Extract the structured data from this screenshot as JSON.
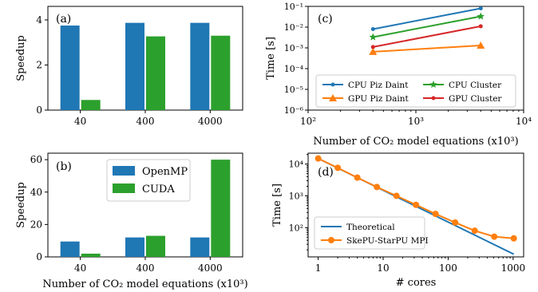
{
  "colors": {
    "openmp": "#1f77b4",
    "cuda": "#2ca02c",
    "cpu_daint": "#1f77b4",
    "gpu_daint": "#ff7f0e",
    "cpu_cluster": "#2ca02c",
    "gpu_cluster": "#d62728",
    "theoretical": "#1f77b4",
    "skepu": "#ff7f0e"
  },
  "chart_data": [
    {
      "panel": "(a)",
      "type": "bar",
      "categories": [
        "40",
        "400",
        "4000"
      ],
      "series": [
        {
          "name": "OpenMP",
          "values": [
            3.75,
            3.87,
            3.87
          ]
        },
        {
          "name": "CUDA",
          "values": [
            0.45,
            3.27,
            3.3
          ]
        }
      ],
      "ylabel": "Speedup",
      "xlabel": "",
      "ylim": [
        0,
        4.6
      ],
      "yticks": [
        "0",
        "2",
        "4"
      ]
    },
    {
      "panel": "(b)",
      "type": "bar",
      "categories": [
        "40",
        "400",
        "4000"
      ],
      "series": [
        {
          "name": "OpenMP",
          "values": [
            9.5,
            12,
            12
          ]
        },
        {
          "name": "CUDA",
          "values": [
            2,
            13,
            60
          ]
        }
      ],
      "ylabel": "Speedup",
      "xlabel": "Number of CO₂ model equations (x10³)",
      "ylim": [
        0,
        64
      ],
      "yticks": [
        "0",
        "20",
        "40",
        "60"
      ],
      "legend": {
        "placement": "top-center",
        "entries": [
          "OpenMP",
          "CUDA"
        ]
      }
    },
    {
      "panel": "(c)",
      "type": "line",
      "xscale": "log",
      "yscale": "log",
      "x": [
        400,
        4000
      ],
      "series": [
        {
          "name": "CPU Piz Daint",
          "values": [
            0.008,
            0.08
          ]
        },
        {
          "name": "GPU Piz Daint",
          "values": [
            0.00065,
            0.0013
          ]
        },
        {
          "name": "CPU Cluster",
          "values": [
            0.0033,
            0.033
          ]
        },
        {
          "name": "GPU Cluster",
          "values": [
            0.0011,
            0.011
          ]
        }
      ],
      "ylabel": "Time [s]",
      "xlabel": "Number of CO₂ model equations (x10³)",
      "xlim": [
        100,
        10000
      ],
      "ylim": [
        1e-06,
        0.1
      ],
      "xticks": [
        "10²",
        "10³",
        "10⁴"
      ],
      "yticks": [
        "10⁻⁶",
        "10⁻⁵",
        "10⁻⁴",
        "10⁻³",
        "10⁻²",
        "10⁻¹"
      ],
      "legend": {
        "placement": "bottom",
        "entries": [
          "CPU Piz Daint",
          "CPU Cluster",
          "GPU Piz Daint",
          "GPU Cluster"
        ]
      }
    },
    {
      "panel": "(d)",
      "type": "line",
      "xscale": "log",
      "yscale": "log",
      "x": [
        1,
        2,
        4,
        8,
        16,
        32,
        64,
        128,
        256,
        512,
        1024
      ],
      "series": [
        {
          "name": "Theoretical",
          "values": [
            15000,
            7500,
            3750,
            1875,
            937.5,
            468.75,
            234.4,
            117.2,
            58.6,
            29.3,
            14.6
          ]
        },
        {
          "name": "SkePU-StarPU MPI",
          "values": [
            15000,
            7600,
            3750,
            1900,
            1000,
            520,
            270,
            145,
            80,
            52,
            46
          ]
        }
      ],
      "ylabel": "Time [s]",
      "xlabel": "# cores",
      "xlim": [
        0.7,
        1450
      ],
      "ylim": [
        12,
        22000
      ],
      "xticks": [
        "1",
        "10",
        "100",
        "1000"
      ],
      "yticks": [
        "10²",
        "10³",
        "10⁴"
      ],
      "legend": {
        "placement": "bottom-left",
        "entries": [
          "Theoretical",
          "SkePU-StarPU MPI"
        ]
      }
    }
  ]
}
